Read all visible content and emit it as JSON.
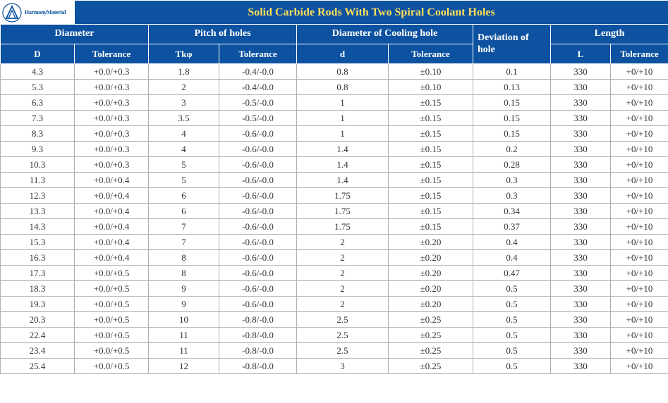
{
  "title": "Solid Carbide Rods With Two Spiral Coolant Holes",
  "logo_text": "HarmonyMaterial",
  "headers": {
    "diameter": "Diameter",
    "pitch": "Pitch of holes",
    "cooling": "Diameter of Cooling hole",
    "deviation": "Deviation of hole",
    "length": "Length"
  },
  "subheaders": {
    "D": "D",
    "Dtol": "Tolerance",
    "Tk": "Tkφ",
    "Tktol": "Tolerance",
    "d": "d",
    "dtol": "Tolerance",
    "L": "L",
    "Ltol": "Tolerance"
  },
  "rows": [
    {
      "D": "4.3",
      "Dtol": "+0.0/+0.3",
      "Tk": "1.8",
      "Tktol": "-0.4/-0.0",
      "d": "0.8",
      "dtol": "±0.10",
      "dev": "0.1",
      "L": "330",
      "Ltol": "+0/+10"
    },
    {
      "D": "5.3",
      "Dtol": "+0.0/+0.3",
      "Tk": "2",
      "Tktol": "-0.4/-0.0",
      "d": "0.8",
      "dtol": "±0.10",
      "dev": "0.13",
      "L": "330",
      "Ltol": "+0/+10"
    },
    {
      "D": "6.3",
      "Dtol": "+0.0/+0.3",
      "Tk": "3",
      "Tktol": "-0.5/-0.0",
      "d": "1",
      "dtol": "±0.15",
      "dev": "0.15",
      "L": "330",
      "Ltol": "+0/+10"
    },
    {
      "D": "7.3",
      "Dtol": "+0.0/+0.3",
      "Tk": "3.5",
      "Tktol": "-0.5/-0.0",
      "d": "1",
      "dtol": "±0.15",
      "dev": "0.15",
      "L": "330",
      "Ltol": "+0/+10"
    },
    {
      "D": "8.3",
      "Dtol": "+0.0/+0.3",
      "Tk": "4",
      "Tktol": "-0.6/-0.0",
      "d": "1",
      "dtol": "±0.15",
      "dev": "0.15",
      "L": "330",
      "Ltol": "+0/+10"
    },
    {
      "D": "9.3",
      "Dtol": "+0.0/+0.3",
      "Tk": "4",
      "Tktol": "-0.6/-0.0",
      "d": "1.4",
      "dtol": "±0.15",
      "dev": "0.2",
      "L": "330",
      "Ltol": "+0/+10"
    },
    {
      "D": "10.3",
      "Dtol": "+0.0/+0.3",
      "Tk": "5",
      "Tktol": "-0.6/-0.0",
      "d": "1.4",
      "dtol": "±0.15",
      "dev": "0.28",
      "L": "330",
      "Ltol": "+0/+10"
    },
    {
      "D": "11.3",
      "Dtol": "+0.0/+0.4",
      "Tk": "5",
      "Tktol": "-0.6/-0.0",
      "d": "1.4",
      "dtol": "±0.15",
      "dev": "0.3",
      "L": "330",
      "Ltol": "+0/+10"
    },
    {
      "D": "12.3",
      "Dtol": "+0.0/+0.4",
      "Tk": "6",
      "Tktol": "-0.6/-0.0",
      "d": "1.75",
      "dtol": "±0.15",
      "dev": "0.3",
      "L": "330",
      "Ltol": "+0/+10"
    },
    {
      "D": "13.3",
      "Dtol": "+0.0/+0.4",
      "Tk": "6",
      "Tktol": "-0.6/-0.0",
      "d": "1.75",
      "dtol": "±0.15",
      "dev": "0.34",
      "L": "330",
      "Ltol": "+0/+10"
    },
    {
      "D": "14.3",
      "Dtol": "+0.0/+0.4",
      "Tk": "7",
      "Tktol": "-0.6/-0.0",
      "d": "1.75",
      "dtol": "±0.15",
      "dev": "0.37",
      "L": "330",
      "Ltol": "+0/+10"
    },
    {
      "D": "15.3",
      "Dtol": "+0.0/+0.4",
      "Tk": "7",
      "Tktol": "-0.6/-0.0",
      "d": "2",
      "dtol": "±0.20",
      "dev": "0.4",
      "L": "330",
      "Ltol": "+0/+10"
    },
    {
      "D": "16.3",
      "Dtol": "+0.0/+0.4",
      "Tk": "8",
      "Tktol": "-0.6/-0.0",
      "d": "2",
      "dtol": "±0.20",
      "dev": "0.4",
      "L": "330",
      "Ltol": "+0/+10"
    },
    {
      "D": "17.3",
      "Dtol": "+0.0/+0.5",
      "Tk": "8",
      "Tktol": "-0.6/-0.0",
      "d": "2",
      "dtol": "±0.20",
      "dev": "0.47",
      "L": "330",
      "Ltol": "+0/+10"
    },
    {
      "D": "18.3",
      "Dtol": "+0.0/+0.5",
      "Tk": "9",
      "Tktol": "-0.6/-0.0",
      "d": "2",
      "dtol": "±0.20",
      "dev": "0.5",
      "L": "330",
      "Ltol": "+0/+10"
    },
    {
      "D": "19.3",
      "Dtol": "+0.0/+0.5",
      "Tk": "9",
      "Tktol": "-0.6/-0.0",
      "d": "2",
      "dtol": "±0.20",
      "dev": "0.5",
      "L": "330",
      "Ltol": "+0/+10"
    },
    {
      "D": "20.3",
      "Dtol": "+0.0/+0.5",
      "Tk": "10",
      "Tktol": "-0.8/-0.0",
      "d": "2.5",
      "dtol": "±0.25",
      "dev": "0.5",
      "L": "330",
      "Ltol": "+0/+10"
    },
    {
      "D": "22.4",
      "Dtol": "+0.0/+0.5",
      "Tk": "11",
      "Tktol": "-0.8/-0.0",
      "d": "2.5",
      "dtol": "±0.25",
      "dev": "0.5",
      "L": "330",
      "Ltol": "+0/+10"
    },
    {
      "D": "23.4",
      "Dtol": "+0.0/+0.5",
      "Tk": "11",
      "Tktol": "-0.8/-0.0",
      "d": "2.5",
      "dtol": "±0.25",
      "dev": "0.5",
      "L": "330",
      "Ltol": "+0/+10"
    },
    {
      "D": "25.4",
      "Dtol": "+0.0/+0.5",
      "Tk": "12",
      "Tktol": "-0.8/-0.0",
      "d": "3",
      "dtol": "±0.25",
      "dev": "0.5",
      "L": "330",
      "Ltol": "+0/+10"
    }
  ],
  "colors": {
    "header_bg": "#0d52a0",
    "title_text": "#ffdf5a",
    "header_text": "#ffffff",
    "cell_text": "#333333",
    "border": "#b0b0b0"
  }
}
